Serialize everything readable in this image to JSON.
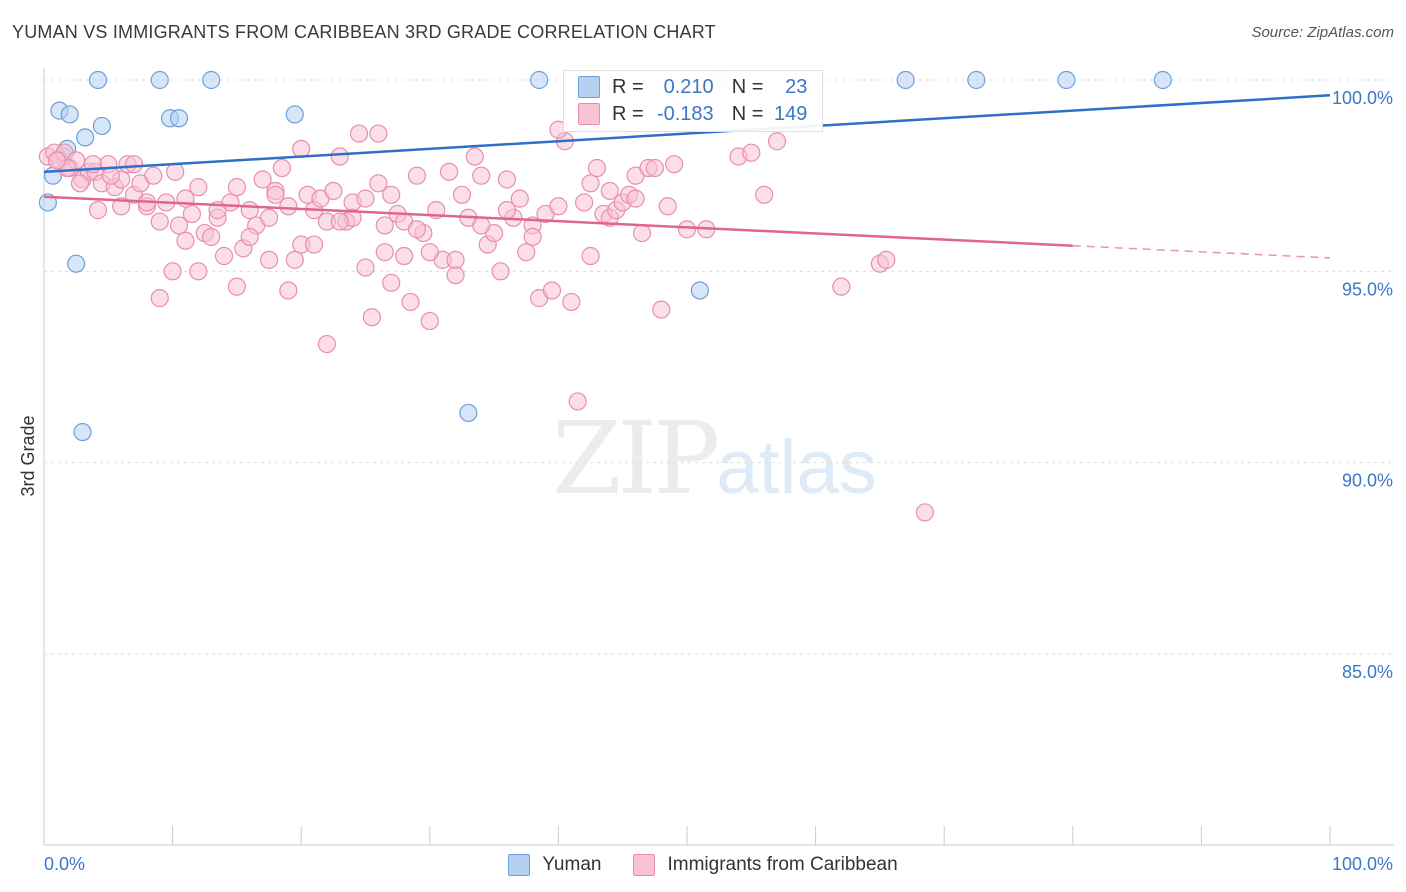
{
  "header": {
    "title": "YUMAN VS IMMIGRANTS FROM CARIBBEAN 3RD GRADE CORRELATION CHART",
    "source": "Source: ZipAtlas.com"
  },
  "watermark": {
    "zip": "ZIP",
    "atlas": "atlas"
  },
  "legend_top": {
    "r_label": "R =",
    "n_label": "N =",
    "rows": [
      {
        "r": "0.210",
        "n": "23",
        "fill": "#b5d0f0",
        "stroke": "#6f9fd8"
      },
      {
        "r": "-0.183",
        "n": "149",
        "fill": "#f8c3d4",
        "stroke": "#e88eae"
      }
    ]
  },
  "chart_data": {
    "type": "scatter",
    "title": "YUMAN VS IMMIGRANTS FROM CARIBBEAN 3RD GRADE CORRELATION CHART",
    "xlabel": "",
    "ylabel": "3rd Grade",
    "xlim": [
      0,
      100
    ],
    "ylim": [
      80.5,
      100.8
    ],
    "x_tick_labels": [
      {
        "value": 0,
        "label": "0.0%"
      },
      {
        "value": 100,
        "label": "100.0%"
      }
    ],
    "x_minor_ticks": [
      0,
      10,
      20,
      30,
      40,
      50,
      60,
      70,
      80,
      90,
      100
    ],
    "y_ticks": [
      {
        "value": 100,
        "label": "100.0%"
      },
      {
        "value": 95,
        "label": "95.0%"
      },
      {
        "value": 90,
        "label": "90.0%"
      },
      {
        "value": 85,
        "label": "85.0%"
      }
    ],
    "grid": true,
    "legend_position": "bottom",
    "series": [
      {
        "name": "Yuman",
        "fill": "#b5d0f0",
        "stroke": "#6f9fd8",
        "line_color": "#2f6fc8",
        "trend": {
          "x": [
            0,
            100
          ],
          "y": [
            97.6,
            99.6
          ],
          "dashed_from": null
        },
        "points": [
          [
            0.3,
            96.8
          ],
          [
            0.7,
            97.5
          ],
          [
            1.2,
            99.2
          ],
          [
            2.0,
            99.1
          ],
          [
            3.2,
            98.5
          ],
          [
            4.5,
            98.8
          ],
          [
            1.5,
            98.0
          ],
          [
            1.8,
            98.2
          ],
          [
            2.5,
            95.2
          ],
          [
            3.0,
            90.8
          ],
          [
            4.2,
            100.0
          ],
          [
            9.0,
            100.0
          ],
          [
            9.8,
            99.0
          ],
          [
            10.5,
            99.0
          ],
          [
            13.0,
            100.0
          ],
          [
            19.5,
            99.1
          ],
          [
            38.5,
            100.0
          ],
          [
            33.0,
            91.3
          ],
          [
            51.0,
            94.5
          ],
          [
            67.0,
            100.0
          ],
          [
            72.5,
            100.0
          ],
          [
            79.5,
            100.0
          ],
          [
            87.0,
            100.0
          ]
        ]
      },
      {
        "name": "Immigrants from Caribbean",
        "fill": "#f8c3d4",
        "stroke": "#e88eae",
        "line_color": "#e06490",
        "trend": {
          "x": [
            0,
            100
          ],
          "y": [
            96.95,
            95.35
          ],
          "dashed_from": 80
        },
        "points": [
          [
            0.3,
            98.0
          ],
          [
            0.8,
            98.1
          ],
          [
            1.2,
            97.9
          ],
          [
            1.6,
            98.1
          ],
          [
            2.0,
            97.7
          ],
          [
            2.5,
            97.9
          ],
          [
            3.0,
            97.4
          ],
          [
            3.5,
            97.6
          ],
          [
            4.0,
            97.6
          ],
          [
            4.5,
            97.3
          ],
          [
            4.2,
            96.6
          ],
          [
            5.0,
            97.8
          ],
          [
            5.5,
            97.2
          ],
          [
            6.0,
            97.4
          ],
          [
            6.5,
            97.8
          ],
          [
            7.0,
            97.0
          ],
          [
            7.5,
            97.3
          ],
          [
            8.0,
            96.7
          ],
          [
            8.5,
            97.5
          ],
          [
            9.0,
            96.3
          ],
          [
            9.5,
            96.8
          ],
          [
            10.0,
            95.0
          ],
          [
            10.5,
            96.2
          ],
          [
            11.0,
            95.8
          ],
          [
            11.5,
            96.5
          ],
          [
            12.0,
            97.2
          ],
          [
            12.5,
            96.0
          ],
          [
            13.0,
            95.9
          ],
          [
            13.5,
            96.4
          ],
          [
            14.0,
            95.4
          ],
          [
            14.5,
            96.8
          ],
          [
            15.0,
            94.6
          ],
          [
            15.5,
            95.6
          ],
          [
            16.0,
            96.6
          ],
          [
            16.5,
            96.2
          ],
          [
            17.0,
            97.4
          ],
          [
            17.5,
            96.4
          ],
          [
            18.0,
            97.1
          ],
          [
            18.5,
            97.7
          ],
          [
            19.0,
            94.5
          ],
          [
            19.5,
            95.3
          ],
          [
            20.0,
            95.7
          ],
          [
            20.5,
            97.0
          ],
          [
            21.0,
            96.6
          ],
          [
            21.5,
            96.9
          ],
          [
            22.0,
            96.3
          ],
          [
            22.5,
            97.1
          ],
          [
            23.0,
            98.0
          ],
          [
            23.5,
            96.3
          ],
          [
            24.0,
            96.8
          ],
          [
            24.5,
            98.6
          ],
          [
            25.0,
            95.1
          ],
          [
            25.5,
            93.8
          ],
          [
            26.0,
            97.3
          ],
          [
            26.5,
            95.5
          ],
          [
            27.0,
            97.0
          ],
          [
            27.5,
            96.5
          ],
          [
            28.0,
            95.4
          ],
          [
            28.5,
            94.2
          ],
          [
            29.0,
            97.5
          ],
          [
            29.5,
            96.0
          ],
          [
            30.0,
            93.7
          ],
          [
            30.5,
            96.6
          ],
          [
            31.0,
            95.3
          ],
          [
            31.5,
            97.6
          ],
          [
            32.0,
            94.9
          ],
          [
            32.5,
            97.0
          ],
          [
            33.0,
            96.4
          ],
          [
            33.5,
            98.0
          ],
          [
            34.0,
            97.5
          ],
          [
            34.5,
            95.7
          ],
          [
            35.0,
            96.0
          ],
          [
            35.5,
            95.0
          ],
          [
            36.0,
            97.4
          ],
          [
            36.5,
            96.4
          ],
          [
            37.0,
            96.9
          ],
          [
            37.5,
            95.5
          ],
          [
            38.0,
            96.2
          ],
          [
            38.5,
            94.3
          ],
          [
            39.0,
            96.5
          ],
          [
            39.5,
            94.5
          ],
          [
            40.0,
            96.7
          ],
          [
            40.5,
            98.4
          ],
          [
            41.0,
            94.2
          ],
          [
            41.5,
            91.6
          ],
          [
            42.0,
            96.8
          ],
          [
            42.5,
            97.3
          ],
          [
            43.0,
            97.7
          ],
          [
            43.5,
            96.5
          ],
          [
            44.0,
            96.4
          ],
          [
            44.5,
            96.6
          ],
          [
            45.0,
            96.8
          ],
          [
            45.5,
            97.0
          ],
          [
            46.0,
            97.5
          ],
          [
            46.5,
            96.0
          ],
          [
            47.0,
            97.7
          ],
          [
            47.5,
            97.7
          ],
          [
            48.0,
            94.0
          ],
          [
            48.5,
            96.7
          ],
          [
            49.0,
            97.8
          ],
          [
            50.0,
            96.1
          ],
          [
            51.5,
            96.1
          ],
          [
            52.5,
            100.0
          ],
          [
            54.0,
            98.0
          ],
          [
            55.0,
            98.1
          ],
          [
            56.0,
            97.0
          ],
          [
            57.0,
            98.4
          ],
          [
            62.0,
            94.6
          ],
          [
            65.0,
            95.2
          ],
          [
            65.5,
            95.3
          ],
          [
            68.5,
            88.7
          ],
          [
            22.0,
            93.1
          ],
          [
            26.0,
            98.6
          ],
          [
            18.0,
            97.0
          ],
          [
            15.0,
            97.2
          ],
          [
            12.0,
            95.0
          ],
          [
            10.2,
            97.6
          ],
          [
            9.0,
            94.3
          ],
          [
            8.0,
            96.8
          ],
          [
            7.0,
            97.8
          ],
          [
            6.0,
            96.7
          ],
          [
            5.2,
            97.5
          ],
          [
            3.8,
            97.8
          ],
          [
            2.8,
            97.3
          ],
          [
            1.8,
            97.7
          ],
          [
            1.0,
            97.9
          ],
          [
            20.0,
            98.2
          ],
          [
            24.0,
            96.4
          ],
          [
            26.5,
            96.2
          ],
          [
            28.0,
            96.3
          ],
          [
            30.0,
            95.5
          ],
          [
            32.0,
            95.3
          ],
          [
            34.0,
            96.2
          ],
          [
            36.0,
            96.6
          ],
          [
            38.0,
            95.9
          ],
          [
            40.0,
            98.7
          ],
          [
            42.5,
            95.4
          ],
          [
            44.0,
            97.1
          ],
          [
            46.0,
            96.9
          ],
          [
            11.0,
            96.9
          ],
          [
            13.5,
            96.6
          ],
          [
            16.0,
            95.9
          ],
          [
            17.5,
            95.3
          ],
          [
            19.0,
            96.7
          ],
          [
            21.0,
            95.7
          ],
          [
            23.0,
            96.3
          ],
          [
            25.0,
            96.9
          ],
          [
            27.0,
            94.7
          ],
          [
            29.0,
            96.1
          ]
        ]
      }
    ]
  }
}
